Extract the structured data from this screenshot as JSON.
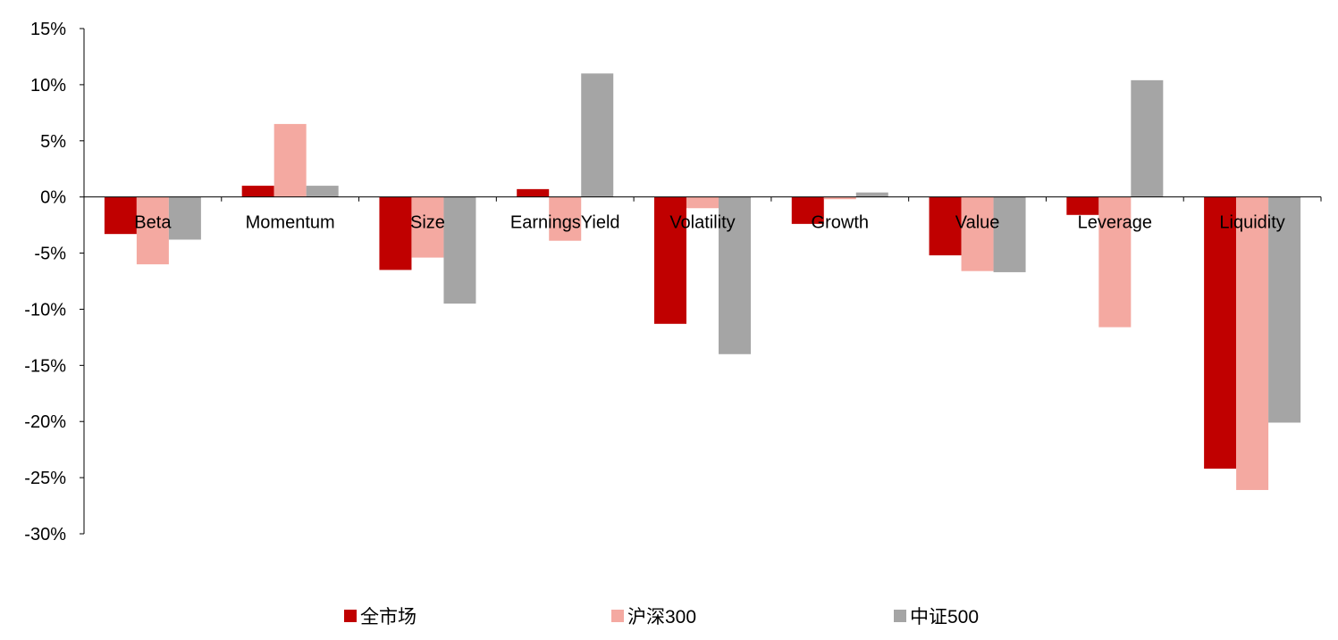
{
  "chart_data": {
    "type": "bar",
    "categories": [
      "Beta",
      "Momentum",
      "Size",
      "EarningsYield",
      "Volatility",
      "Growth",
      "Value",
      "Leverage",
      "Liquidity"
    ],
    "series": [
      {
        "name": "全市场",
        "color": "#C00000",
        "values": [
          -3.3,
          1.0,
          -6.5,
          0.7,
          -11.3,
          -2.4,
          -5.2,
          -1.6,
          -24.2
        ]
      },
      {
        "name": "沪深300",
        "color": "#F4A9A1",
        "values": [
          -6.0,
          6.5,
          -5.4,
          -3.9,
          -1.0,
          -0.2,
          -6.6,
          -11.6,
          -26.1
        ]
      },
      {
        "name": "中证500",
        "color": "#A5A5A5",
        "values": [
          -3.8,
          1.0,
          -9.5,
          11.0,
          -14.0,
          0.4,
          -6.7,
          10.4,
          -20.1
        ]
      }
    ],
    "yticks": [
      "15%",
      "10%",
      "5%",
      "0%",
      "-5%",
      "-10%",
      "-15%",
      "-20%",
      "-25%",
      "-30%"
    ],
    "ylim": [
      -30,
      15
    ],
    "legend_position": "bottom",
    "grid": false
  }
}
